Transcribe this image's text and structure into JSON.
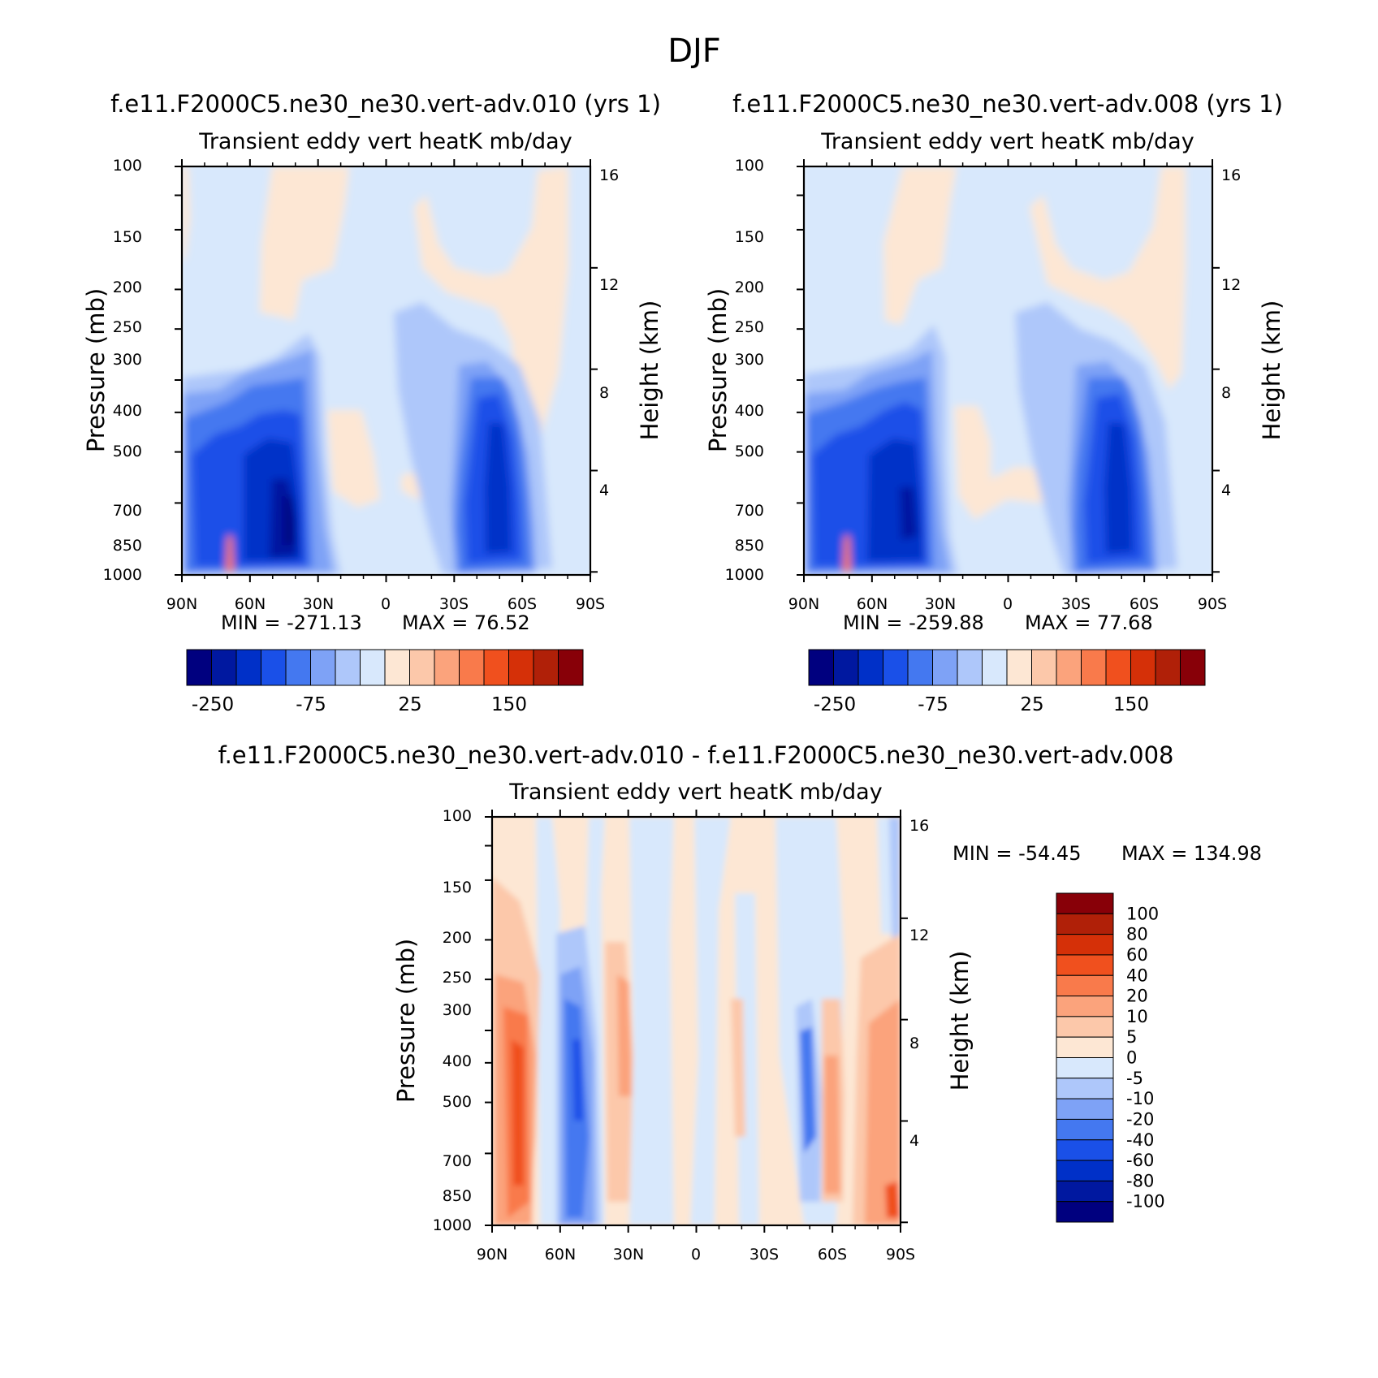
{
  "page_title": "DJF",
  "color_scale": {
    "panel_colors": [
      "#00007f",
      "#0018a0",
      "#0030c8",
      "#1a50e8",
      "#4478f0",
      "#7ea2f6",
      "#aec7fa",
      "#d8e8fc",
      "#fde7d4",
      "#fcc8aa",
      "#fba37c",
      "#f97a4b",
      "#f0501e",
      "#d53008",
      "#b02008",
      "#880008"
    ],
    "panel_tick_labels": [
      "-250",
      "-75",
      "25",
      "150"
    ],
    "diff_levels": [
      "100",
      "80",
      "60",
      "40",
      "20",
      "10",
      "5",
      "0",
      "-5",
      "-10",
      "-20",
      "-40",
      "-60",
      "-80",
      "-100"
    ],
    "diff_colors": [
      "#880008",
      "#b02008",
      "#d53008",
      "#f0501e",
      "#f97a4b",
      "#fba37c",
      "#fcc8aa",
      "#fde7d4",
      "#d8e8fc",
      "#aec7fa",
      "#7ea2f6",
      "#4478f0",
      "#1a50e8",
      "#0030c8",
      "#0018a0",
      "#00007f"
    ]
  },
  "chart_data": [
    {
      "type": "heatmap",
      "title": "f.e11.F2000C5.ne30_ne30.vert-adv.010 (yrs 1)",
      "subtitle": "Transient eddy vert heatK mb/day",
      "xlabel": "",
      "ylabel": "Pressure (mb)",
      "y2label": "Height (km)",
      "x_ticks": [
        "90N",
        "60N",
        "30N",
        "0",
        "30S",
        "60S",
        "90S"
      ],
      "x_range": [
        90,
        -90
      ],
      "y_ticks": [
        "100",
        "150",
        "200",
        "250",
        "300",
        "400",
        "500",
        "700",
        "850",
        "1000"
      ],
      "y_range_mb": [
        1000,
        100
      ],
      "y2_ticks": [
        "16",
        "12",
        "8",
        "4"
      ],
      "min_label": "MIN = -271.13",
      "max_label": "MAX = 76.52",
      "min": -271.13,
      "max": 76.52,
      "features": [
        {
          "lat": 40,
          "p": 700,
          "value": -250,
          "width_deg": 10,
          "depth": "sfc-300"
        },
        {
          "lat": -55,
          "p": 650,
          "value": -200,
          "width_deg": 12,
          "depth": "sfc-350"
        },
        {
          "lat": 66,
          "p": 980,
          "value": 50
        }
      ]
    },
    {
      "type": "heatmap",
      "title": "f.e11.F2000C5.ne30_ne30.vert-adv.008 (yrs 1)",
      "subtitle": "Transient eddy vert heatK mb/day",
      "xlabel": "",
      "ylabel": "Pressure (mb)",
      "y2label": "Height (km)",
      "x_ticks": [
        "90N",
        "60N",
        "30N",
        "0",
        "30S",
        "60S",
        "90S"
      ],
      "x_range": [
        90,
        -90
      ],
      "y_ticks": [
        "100",
        "150",
        "200",
        "250",
        "300",
        "400",
        "500",
        "700",
        "850",
        "1000"
      ],
      "y_range_mb": [
        1000,
        100
      ],
      "y2_ticks": [
        "16",
        "12",
        "8",
        "4"
      ],
      "min_label": "MIN = -259.88",
      "max_label": "MAX = 77.68",
      "min": -259.88,
      "max": 77.68,
      "features": [
        {
          "lat": 40,
          "p": 700,
          "value": -230,
          "width_deg": 10,
          "depth": "sfc-300"
        },
        {
          "lat": -58,
          "p": 650,
          "value": -190,
          "width_deg": 12,
          "depth": "sfc-350"
        },
        {
          "lat": 66,
          "p": 980,
          "value": 50
        }
      ]
    },
    {
      "type": "heatmap",
      "title": "f.e11.F2000C5.ne30_ne30.vert-adv.010 - f.e11.F2000C5.ne30_ne30.vert-adv.008",
      "subtitle": "Transient eddy vert heatK mb/day",
      "xlabel": "",
      "ylabel": "Pressure (mb)",
      "y2label": "Height (km)",
      "x_ticks": [
        "90N",
        "60N",
        "30N",
        "0",
        "30S",
        "60S",
        "90S"
      ],
      "x_range": [
        90,
        -90
      ],
      "y_ticks": [
        "100",
        "150",
        "200",
        "250",
        "300",
        "400",
        "500",
        "700",
        "850",
        "1000"
      ],
      "y_range_mb": [
        1000,
        100
      ],
      "y2_ticks": [
        "16",
        "12",
        "8",
        "4"
      ],
      "min_label": "MIN = -54.45",
      "max_label": "MAX = 134.98",
      "min": -54.45,
      "max": 134.98,
      "features": [
        {
          "lat": 77,
          "value": 45
        },
        {
          "lat": 51,
          "value": -40
        },
        {
          "lat": 33,
          "value": 20
        },
        {
          "lat": -49,
          "value": -35
        },
        {
          "lat": -60,
          "value": 25
        },
        {
          "lat": -83,
          "value": 30
        }
      ]
    }
  ]
}
